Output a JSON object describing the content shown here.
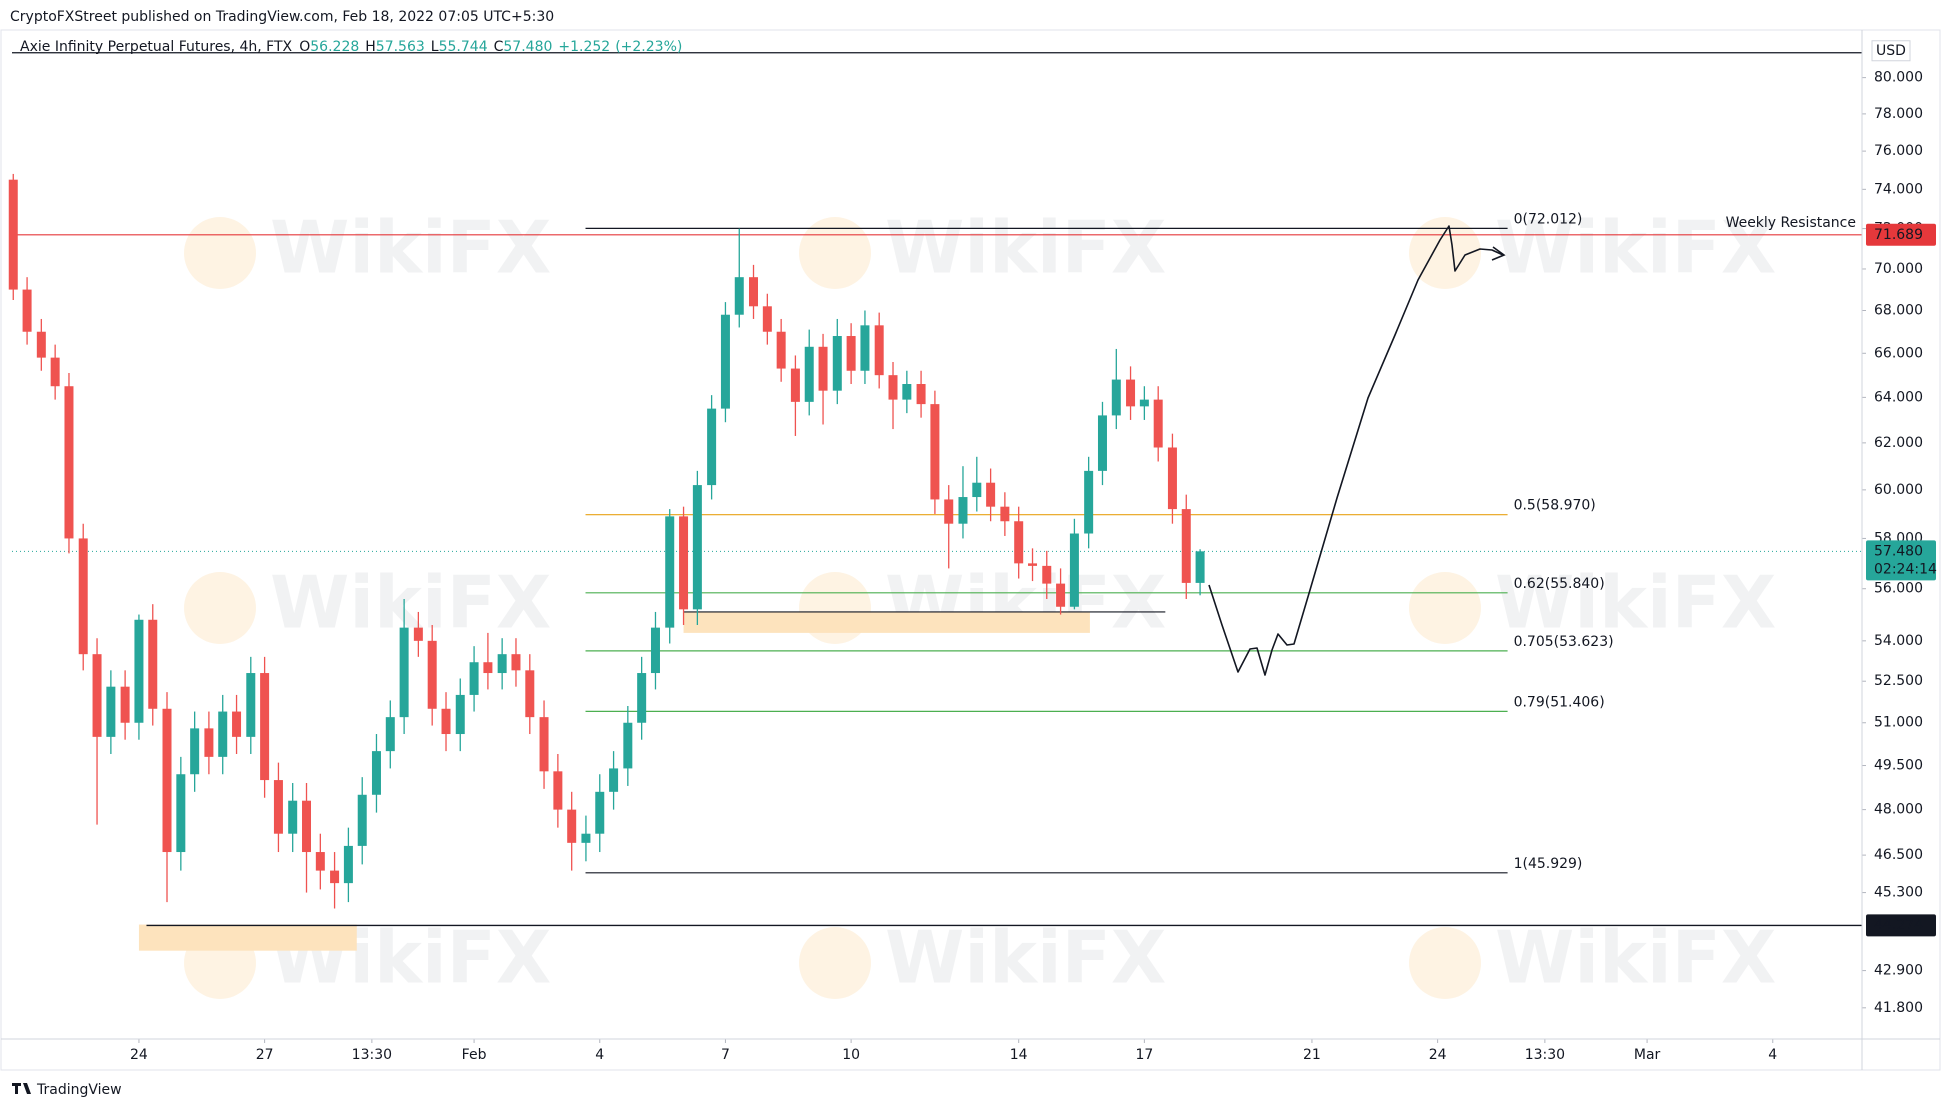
{
  "chart_data": {
    "type": "candlestick",
    "header": {
      "published": "CryptoFXStreet published on TradingView.com, Feb 18, 2022 07:05 UTC+5:30",
      "symbol": "Axie Infinity Perpetual Futures, 4h, FTX",
      "ohlc": [
        {
          "key": "O",
          "value": 56.228
        },
        {
          "key": "H",
          "value": 57.563
        },
        {
          "key": "L",
          "value": 55.744
        },
        {
          "key": "C",
          "value": 57.48,
          "label": "57.480"
        }
      ],
      "change": {
        "value": 1.252,
        "label": "+1.252"
      },
      "change_pct": {
        "value": 2.23,
        "label": "(+2.23%)"
      }
    },
    "currency": "USD",
    "footer": "TradingView",
    "watermark": "WikiFX",
    "log": true,
    "grid": false,
    "up_color": "#26a69a",
    "down_color": "#ef5350",
    "xlim": [
      -3.03,
      41.13
    ],
    "ylim": [
      40.9,
      82.3
    ],
    "xticks": [
      {
        "value": 0,
        "label": "24"
      },
      {
        "value": 3,
        "label": "27"
      },
      {
        "value": 5.56,
        "label": "13:30"
      },
      {
        "value": 8,
        "label": "Feb"
      },
      {
        "value": 11,
        "label": "4"
      },
      {
        "value": 14,
        "label": "7"
      },
      {
        "value": 17,
        "label": "10"
      },
      {
        "value": 21,
        "label": "14"
      },
      {
        "value": 24,
        "label": "17"
      },
      {
        "value": 28,
        "label": "21"
      },
      {
        "value": 31,
        "label": "24"
      },
      {
        "value": 33.56,
        "label": "13:30"
      },
      {
        "value": 36,
        "label": "Mar"
      },
      {
        "value": 39,
        "label": "4"
      }
    ],
    "yticks": [
      {
        "value": 80,
        "label": "80.000"
      },
      {
        "value": 78,
        "label": "78.000"
      },
      {
        "value": 76,
        "label": "76.000"
      },
      {
        "value": 74,
        "label": "74.000"
      },
      {
        "value": 72,
        "label": "72.000"
      },
      {
        "value": 70,
        "label": "70.000"
      },
      {
        "value": 68,
        "label": "68.000"
      },
      {
        "value": 66,
        "label": "66.000"
      },
      {
        "value": 64,
        "label": "64.000"
      },
      {
        "value": 62,
        "label": "62.000"
      },
      {
        "value": 60,
        "label": "60.000"
      },
      {
        "value": 58,
        "label": "58.000"
      },
      {
        "value": 56,
        "label": "56.000"
      },
      {
        "value": 54,
        "label": "54.000"
      },
      {
        "value": 52.5,
        "label": "52.500"
      },
      {
        "value": 51,
        "label": "51.000"
      },
      {
        "value": 49.5,
        "label": "49.500"
      },
      {
        "value": 48,
        "label": "48.000"
      },
      {
        "value": 46.5,
        "label": "46.500"
      },
      {
        "value": 45.3,
        "label": "45.300"
      },
      {
        "value": 42.9,
        "label": "42.900"
      },
      {
        "value": 41.8,
        "label": "41.800"
      }
    ],
    "x": [
      -3,
      -2.67,
      -2.33,
      -2,
      -1.67,
      -1.33,
      -1,
      -0.67,
      -0.33,
      0,
      0.33,
      0.67,
      1,
      1.33,
      1.67,
      2,
      2.33,
      2.67,
      3,
      3.33,
      3.67,
      4,
      4.33,
      4.67,
      5,
      5.33,
      5.67,
      6,
      6.33,
      6.67,
      7,
      7.33,
      7.67,
      8,
      8.33,
      8.67,
      9,
      9.33,
      9.67,
      10,
      10.33,
      10.67,
      11,
      11.33,
      11.67,
      12,
      12.33,
      12.67,
      13,
      13.33,
      13.67,
      14,
      14.33,
      14.67,
      15,
      15.33,
      15.67,
      16,
      16.33,
      16.67,
      17,
      17.33,
      17.67,
      18,
      18.33,
      18.67,
      19,
      19.33,
      19.67,
      20,
      20.33,
      20.67,
      21,
      21.33,
      21.67,
      22,
      22.33,
      22.67,
      23,
      23.33,
      23.67,
      24,
      24.33,
      24.67,
      25,
      25.33
    ],
    "open": [
      74.5,
      69.0,
      67.0,
      65.8,
      64.5,
      58.0,
      53.5,
      50.5,
      52.3,
      51.0,
      54.8,
      51.5,
      46.6,
      49.2,
      50.8,
      49.8,
      51.4,
      50.5,
      52.8,
      49.0,
      47.2,
      48.3,
      46.6,
      46.0,
      45.6,
      46.8,
      48.5,
      50.0,
      51.2,
      54.5,
      54.0,
      51.5,
      50.6,
      52.0,
      53.2,
      52.8,
      53.5,
      52.9,
      51.2,
      49.3,
      48.0,
      46.9,
      47.2,
      48.6,
      49.4,
      51.0,
      52.8,
      54.5,
      58.9,
      55.2,
      60.2,
      63.5,
      67.8,
      69.6,
      68.2,
      67.0,
      65.3,
      63.8,
      66.3,
      64.3,
      66.8,
      65.2,
      67.3,
      65.0,
      63.9,
      64.6,
      63.7,
      59.6,
      58.6,
      59.7,
      60.3,
      59.3,
      58.7,
      57.0,
      56.9,
      56.2,
      55.3,
      58.2,
      60.8,
      63.2,
      64.8,
      63.6,
      63.9,
      61.8,
      59.2,
      56.228
    ],
    "high": [
      74.8,
      69.6,
      67.6,
      66.4,
      65.1,
      58.6,
      54.1,
      52.9,
      52.9,
      55.0,
      55.4,
      52.1,
      49.8,
      51.4,
      51.4,
      52.0,
      52.0,
      53.4,
      53.4,
      49.6,
      48.9,
      48.9,
      47.2,
      46.6,
      47.4,
      49.1,
      50.6,
      51.8,
      55.6,
      55.1,
      54.6,
      52.1,
      52.6,
      53.8,
      54.3,
      54.1,
      54.1,
      53.5,
      51.8,
      49.9,
      48.6,
      47.8,
      49.2,
      50.0,
      51.6,
      53.4,
      55.1,
      59.2,
      59.3,
      60.8,
      64.1,
      68.4,
      72.0,
      70.2,
      68.8,
      67.6,
      65.9,
      67.1,
      66.9,
      67.6,
      67.4,
      68.0,
      67.9,
      65.6,
      65.2,
      65.2,
      64.3,
      60.2,
      61.0,
      61.4,
      60.9,
      59.9,
      59.3,
      57.6,
      57.5,
      56.8,
      58.8,
      61.4,
      63.8,
      66.2,
      65.4,
      64.5,
      64.5,
      62.4,
      59.8,
      57.563
    ],
    "low": [
      68.5,
      66.4,
      65.2,
      63.9,
      57.4,
      52.9,
      47.5,
      49.9,
      50.4,
      50.4,
      50.9,
      45.0,
      46.0,
      48.6,
      49.2,
      49.2,
      49.9,
      49.9,
      48.4,
      46.6,
      46.6,
      45.3,
      45.4,
      44.8,
      45.0,
      46.2,
      47.9,
      49.4,
      50.6,
      53.4,
      50.9,
      50.0,
      50.0,
      51.4,
      52.2,
      52.2,
      52.3,
      50.6,
      48.7,
      47.4,
      46.0,
      46.3,
      46.6,
      48.0,
      48.8,
      50.4,
      52.2,
      53.9,
      54.6,
      54.6,
      59.6,
      62.9,
      67.2,
      67.6,
      66.4,
      64.7,
      62.3,
      63.2,
      62.8,
      63.7,
      64.6,
      64.6,
      64.4,
      62.6,
      63.3,
      63.1,
      59.0,
      56.8,
      58.0,
      59.1,
      58.7,
      58.1,
      56.4,
      56.3,
      55.6,
      55.0,
      55.2,
      57.6,
      60.2,
      62.6,
      63.0,
      63.0,
      61.2,
      58.6,
      55.6,
      55.744
    ],
    "close": [
      69.0,
      67.0,
      65.8,
      64.5,
      58.0,
      53.5,
      50.5,
      52.3,
      51.0,
      54.8,
      51.5,
      46.6,
      49.2,
      50.8,
      49.8,
      51.4,
      50.5,
      52.8,
      49.0,
      47.2,
      48.3,
      46.6,
      46.0,
      45.6,
      46.8,
      48.5,
      50.0,
      51.2,
      54.5,
      54.0,
      51.5,
      50.6,
      52.0,
      53.2,
      52.8,
      53.5,
      52.9,
      51.2,
      49.3,
      48.0,
      46.9,
      47.2,
      48.6,
      49.4,
      51.0,
      52.8,
      54.5,
      58.9,
      55.2,
      60.2,
      63.5,
      67.8,
      69.6,
      68.2,
      67.0,
      65.3,
      63.8,
      66.3,
      64.3,
      66.8,
      65.2,
      67.3,
      65.0,
      63.9,
      64.6,
      63.7,
      59.6,
      58.6,
      59.7,
      60.3,
      59.3,
      58.7,
      57.0,
      56.9,
      56.2,
      55.3,
      58.2,
      60.8,
      63.2,
      64.8,
      63.6,
      63.9,
      61.8,
      59.2,
      56.228,
      57.48
    ],
    "last_price": {
      "value": 57.48,
      "label": "57.480",
      "countdown": "02:24:14",
      "color": "#26a69a"
    },
    "resistance": {
      "name": "Weekly Resistance",
      "value": 71.689,
      "color": "#e5383b"
    },
    "support": {
      "value": 44.274,
      "from_x": 0.18,
      "color": "#131722"
    },
    "reference_lines": [
      81.4
    ],
    "fib_x": [
      10.66,
      32.67
    ],
    "fib_levels": [
      {
        "label": "0(72.012)",
        "value": 72.012,
        "color": "#131722"
      },
      {
        "label": "0.5(58.970)",
        "value": 58.97,
        "color": "#e8a317"
      },
      {
        "label": "0.62(55.840)",
        "value": 55.84,
        "color": "#4caf50"
      },
      {
        "label": "0.705(53.623)",
        "value": 53.623,
        "color": "#4caf50"
      },
      {
        "label": "0.79(51.406)",
        "value": 51.406,
        "color": "#4caf50"
      },
      {
        "label": "1(45.929)",
        "value": 45.929,
        "color": "#131722"
      }
    ],
    "support_line": {
      "value": 55.1,
      "x": [
        13,
        24.5
      ]
    },
    "zones": [
      {
        "x": [
          13,
          22.7
        ],
        "low": 54.3,
        "high": 55.1
      },
      {
        "x": [
          0,
          5.2
        ],
        "low": 43.5,
        "high": 44.3
      }
    ],
    "zone_color": "#fde3bd"
  }
}
